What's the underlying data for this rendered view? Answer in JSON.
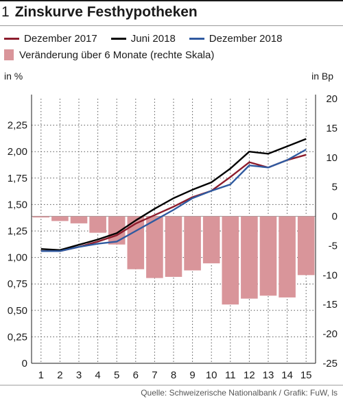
{
  "title_number": "1",
  "title": "Zinskurve Festhypotheken",
  "units": {
    "left": "in %",
    "right": "in Bp"
  },
  "source": "Quelle: Schweizerische Nationalbank / Grafik: FuW, ls",
  "colors": {
    "dez2017": "#8c1c2c",
    "jun2018": "#000000",
    "dez2018": "#2f5aa0",
    "change": "#d9959a"
  },
  "legend": {
    "dez2017": "Dezember 2017",
    "jun2018": "Juni 2018",
    "dez2018": "Dezember 2018",
    "change": "Veränderung über 6 Monate (rechte Skala)"
  },
  "chart_data": {
    "type": "line",
    "categories": [
      "1",
      "2",
      "3",
      "4",
      "5",
      "6",
      "7",
      "8",
      "9",
      "10",
      "11",
      "12",
      "13",
      "14",
      "15"
    ],
    "y_left": {
      "label": "in %",
      "range": [
        0,
        2.5
      ],
      "ticks": [
        "0",
        "0,25",
        "0,50",
        "0,75",
        "1,00",
        "1,25",
        "1,50",
        "1,75",
        "2,00",
        "2,25"
      ]
    },
    "y_right": {
      "label": "in Bp",
      "range": [
        -25,
        20
      ],
      "ticks": [
        "-25",
        "-20",
        "-15",
        "-10",
        "-5",
        "0",
        "5",
        "10",
        "15",
        "20"
      ]
    },
    "grid": true,
    "series": [
      {
        "name": "Dezember 2017",
        "axis": "left",
        "type": "line",
        "color": "#8c1c2c",
        "values": [
          1.06,
          1.06,
          1.1,
          1.15,
          1.21,
          1.32,
          1.4,
          1.48,
          1.57,
          1.63,
          1.76,
          1.9,
          1.85,
          1.92,
          1.97
        ]
      },
      {
        "name": "Juni 2018",
        "axis": "left",
        "type": "line",
        "color": "#000000",
        "values": [
          1.08,
          1.07,
          1.12,
          1.17,
          1.23,
          1.35,
          1.46,
          1.56,
          1.64,
          1.71,
          1.84,
          2.0,
          1.98,
          2.05,
          2.12
        ]
      },
      {
        "name": "Dezember 2018",
        "axis": "left",
        "type": "line",
        "color": "#2f5aa0",
        "values": [
          1.06,
          1.06,
          1.1,
          1.13,
          1.15,
          1.25,
          1.35,
          1.45,
          1.56,
          1.63,
          1.69,
          1.87,
          1.85,
          1.92,
          2.02
        ]
      },
      {
        "name": "Veränderung über 6 Monate (rechte Skala)",
        "axis": "right",
        "type": "bar",
        "color": "#d9959a",
        "values": [
          -0.2,
          -0.8,
          -1.2,
          -2.8,
          -4.8,
          -9.0,
          -10.5,
          -10.3,
          -9.2,
          -8.0,
          -15.0,
          -14.0,
          -13.5,
          -13.8,
          -10.0
        ]
      }
    ]
  }
}
